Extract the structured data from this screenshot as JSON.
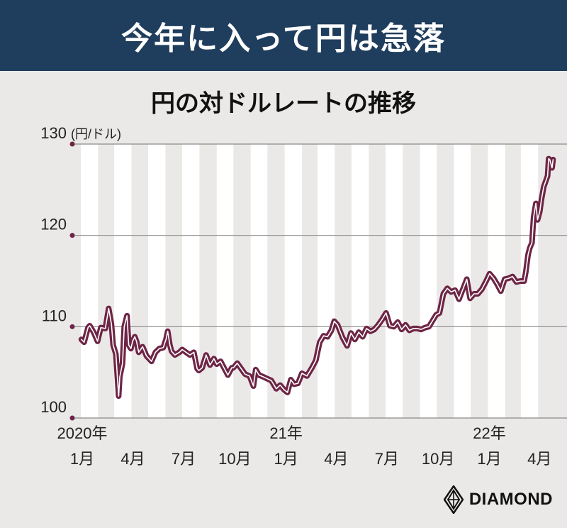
{
  "header": {
    "title": "今年に入って円は急落"
  },
  "chart_data": {
    "type": "line",
    "title": "円の対ドルレートの推移",
    "unit": "(円/ドル)",
    "ylim": [
      100,
      130
    ],
    "xlim": [
      "2020-01-01",
      "2022-04-30"
    ],
    "y_ticks": [
      "100",
      "110",
      "120",
      "130"
    ],
    "x_ticks": [
      {
        "date": "2020-01-01",
        "year": "2020年",
        "month": "1月"
      },
      {
        "date": "2020-04-01",
        "year": "",
        "month": "4月"
      },
      {
        "date": "2020-07-01",
        "year": "",
        "month": "7月"
      },
      {
        "date": "2020-10-01",
        "year": "",
        "month": "10月"
      },
      {
        "date": "2021-01-01",
        "year": "21年",
        "month": "1月"
      },
      {
        "date": "2021-04-01",
        "year": "",
        "month": "4月"
      },
      {
        "date": "2021-07-01",
        "year": "",
        "month": "7月"
      },
      {
        "date": "2021-10-01",
        "year": "",
        "month": "10月"
      },
      {
        "date": "2022-01-01",
        "year": "22年",
        "month": "1月"
      },
      {
        "date": "2022-04-01",
        "year": "",
        "month": "4月"
      }
    ],
    "grid": true,
    "line_color": "#6e2545",
    "band_color": "#ffffff",
    "series": [
      {
        "name": "",
        "points": [
          [
            "2020-01-02",
            108.6
          ],
          [
            "2020-01-07",
            108.3
          ],
          [
            "2020-01-14",
            109.9
          ],
          [
            "2020-01-17",
            110.1
          ],
          [
            "2020-01-24",
            109.4
          ],
          [
            "2020-01-31",
            108.4
          ],
          [
            "2020-02-06",
            109.9
          ],
          [
            "2020-02-14",
            109.8
          ],
          [
            "2020-02-20",
            112.0
          ],
          [
            "2020-02-25",
            110.3
          ],
          [
            "2020-02-28",
            108.0
          ],
          [
            "2020-03-04",
            107.0
          ],
          [
            "2020-03-09",
            102.4
          ],
          [
            "2020-03-11",
            104.5
          ],
          [
            "2020-03-16",
            106.0
          ],
          [
            "2020-03-19",
            110.0
          ],
          [
            "2020-03-24",
            111.2
          ],
          [
            "2020-03-27",
            108.0
          ],
          [
            "2020-03-31",
            107.6
          ],
          [
            "2020-04-03",
            108.4
          ],
          [
            "2020-04-07",
            108.9
          ],
          [
            "2020-04-10",
            108.4
          ],
          [
            "2020-04-14",
            107.2
          ],
          [
            "2020-04-21",
            107.8
          ],
          [
            "2020-04-28",
            106.8
          ],
          [
            "2020-05-01",
            106.6
          ],
          [
            "2020-05-07",
            106.2
          ],
          [
            "2020-05-14",
            107.2
          ],
          [
            "2020-05-21",
            107.6
          ],
          [
            "2020-05-28",
            107.7
          ],
          [
            "2020-06-02",
            108.6
          ],
          [
            "2020-06-05",
            109.5
          ],
          [
            "2020-06-09",
            108.0
          ],
          [
            "2020-06-12",
            107.3
          ],
          [
            "2020-06-18",
            106.9
          ],
          [
            "2020-06-26",
            107.2
          ],
          [
            "2020-07-01",
            107.5
          ],
          [
            "2020-07-08",
            107.2
          ],
          [
            "2020-07-15",
            106.9
          ],
          [
            "2020-07-22",
            107.2
          ],
          [
            "2020-07-28",
            105.4
          ],
          [
            "2020-07-31",
            105.2
          ],
          [
            "2020-08-06",
            105.5
          ],
          [
            "2020-08-13",
            106.9
          ],
          [
            "2020-08-20",
            105.8
          ],
          [
            "2020-08-27",
            106.5
          ],
          [
            "2020-09-01",
            105.9
          ],
          [
            "2020-09-08",
            106.2
          ],
          [
            "2020-09-14",
            105.5
          ],
          [
            "2020-09-21",
            104.7
          ],
          [
            "2020-09-28",
            105.5
          ],
          [
            "2020-10-01",
            105.5
          ],
          [
            "2020-10-08",
            106.0
          ],
          [
            "2020-10-15",
            105.4
          ],
          [
            "2020-10-22",
            104.8
          ],
          [
            "2020-10-30",
            104.6
          ],
          [
            "2020-11-06",
            103.5
          ],
          [
            "2020-11-10",
            105.3
          ],
          [
            "2020-11-16",
            104.7
          ],
          [
            "2020-11-24",
            104.5
          ],
          [
            "2020-12-01",
            104.3
          ],
          [
            "2020-12-08",
            104.1
          ],
          [
            "2020-12-17",
            103.2
          ],
          [
            "2020-12-24",
            103.6
          ],
          [
            "2020-12-31",
            103.1
          ],
          [
            "2021-01-06",
            102.8
          ],
          [
            "2021-01-12",
            104.2
          ],
          [
            "2021-01-18",
            103.7
          ],
          [
            "2021-01-25",
            103.8
          ],
          [
            "2021-02-01",
            104.9
          ],
          [
            "2021-02-10",
            104.6
          ],
          [
            "2021-02-19",
            105.5
          ],
          [
            "2021-02-26",
            106.3
          ],
          [
            "2021-03-05",
            108.3
          ],
          [
            "2021-03-12",
            109.0
          ],
          [
            "2021-03-19",
            108.9
          ],
          [
            "2021-03-26",
            109.6
          ],
          [
            "2021-03-31",
            110.6
          ],
          [
            "2021-04-06",
            110.2
          ],
          [
            "2021-04-15",
            108.8
          ],
          [
            "2021-04-23",
            107.9
          ],
          [
            "2021-04-30",
            109.3
          ],
          [
            "2021-05-07",
            108.6
          ],
          [
            "2021-05-14",
            109.4
          ],
          [
            "2021-05-21",
            108.9
          ],
          [
            "2021-05-28",
            109.8
          ],
          [
            "2021-06-04",
            109.5
          ],
          [
            "2021-06-11",
            109.7
          ],
          [
            "2021-06-18",
            110.2
          ],
          [
            "2021-06-25",
            110.8
          ],
          [
            "2021-07-02",
            111.5
          ],
          [
            "2021-07-09",
            110.1
          ],
          [
            "2021-07-16",
            110.0
          ],
          [
            "2021-07-23",
            110.5
          ],
          [
            "2021-07-30",
            109.7
          ],
          [
            "2021-08-06",
            110.2
          ],
          [
            "2021-08-13",
            109.6
          ],
          [
            "2021-08-20",
            109.8
          ],
          [
            "2021-08-27",
            109.8
          ],
          [
            "2021-09-03",
            109.7
          ],
          [
            "2021-09-10",
            109.9
          ],
          [
            "2021-09-17",
            110.0
          ],
          [
            "2021-09-24",
            110.7
          ],
          [
            "2021-09-30",
            111.3
          ],
          [
            "2021-10-06",
            111.5
          ],
          [
            "2021-10-13",
            113.6
          ],
          [
            "2021-10-20",
            114.2
          ],
          [
            "2021-10-27",
            113.8
          ],
          [
            "2021-11-03",
            114.0
          ],
          [
            "2021-11-10",
            113.0
          ],
          [
            "2021-11-17",
            114.1
          ],
          [
            "2021-11-24",
            115.2
          ],
          [
            "2021-11-30",
            113.1
          ],
          [
            "2021-12-07",
            113.6
          ],
          [
            "2021-12-14",
            113.6
          ],
          [
            "2021-12-21",
            114.1
          ],
          [
            "2021-12-28",
            114.9
          ],
          [
            "2022-01-04",
            115.8
          ],
          [
            "2022-01-11",
            115.3
          ],
          [
            "2022-01-18",
            114.6
          ],
          [
            "2022-01-24",
            113.9
          ],
          [
            "2022-01-31",
            115.2
          ],
          [
            "2022-02-07",
            115.3
          ],
          [
            "2022-02-14",
            115.5
          ],
          [
            "2022-02-21",
            114.9
          ],
          [
            "2022-02-28",
            115.0
          ],
          [
            "2022-03-07",
            115.0
          ],
          [
            "2022-03-10",
            116.0
          ],
          [
            "2022-03-14",
            117.9
          ],
          [
            "2022-03-17",
            118.6
          ],
          [
            "2022-03-21",
            119.2
          ],
          [
            "2022-03-24",
            122.0
          ],
          [
            "2022-03-28",
            123.5
          ],
          [
            "2022-03-31",
            121.7
          ],
          [
            "2022-04-04",
            122.6
          ],
          [
            "2022-04-07",
            123.9
          ],
          [
            "2022-04-11",
            125.3
          ],
          [
            "2022-04-14",
            125.8
          ],
          [
            "2022-04-18",
            126.5
          ],
          [
            "2022-04-20",
            128.4
          ],
          [
            "2022-04-22",
            128.3
          ],
          [
            "2022-04-26",
            127.4
          ],
          [
            "2022-04-28",
            128.3
          ]
        ]
      }
    ]
  },
  "brand": {
    "name": "DIAMOND",
    "logo_icon": "diamond-logo-icon"
  }
}
